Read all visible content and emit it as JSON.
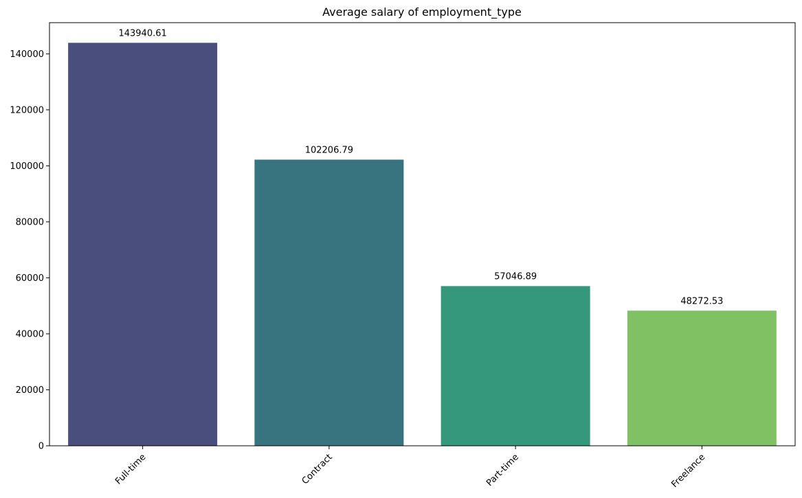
{
  "chart_data": {
    "type": "bar",
    "title": "Average salary of employment_type",
    "xlabel": "",
    "ylabel": "",
    "categories": [
      "Full-time",
      "Contract",
      "Part-time",
      "Freelance"
    ],
    "values": [
      143940.61,
      102206.79,
      57046.89,
      48272.53
    ],
    "value_labels": [
      "143940.61",
      "102206.79",
      "57046.89",
      "48272.53"
    ],
    "colors": [
      "#4a4e7c",
      "#387380",
      "#35977c",
      "#80c263"
    ],
    "ylim": [
      0,
      151137
    ],
    "yticks": [
      0,
      20000,
      40000,
      60000,
      80000,
      100000,
      120000,
      140000
    ],
    "ytick_labels": [
      "0",
      "20000",
      "40000",
      "60000",
      "80000",
      "100000",
      "120000",
      "140000"
    ],
    "xtick_rotation_deg": 45,
    "grid": false,
    "legend": "none"
  }
}
